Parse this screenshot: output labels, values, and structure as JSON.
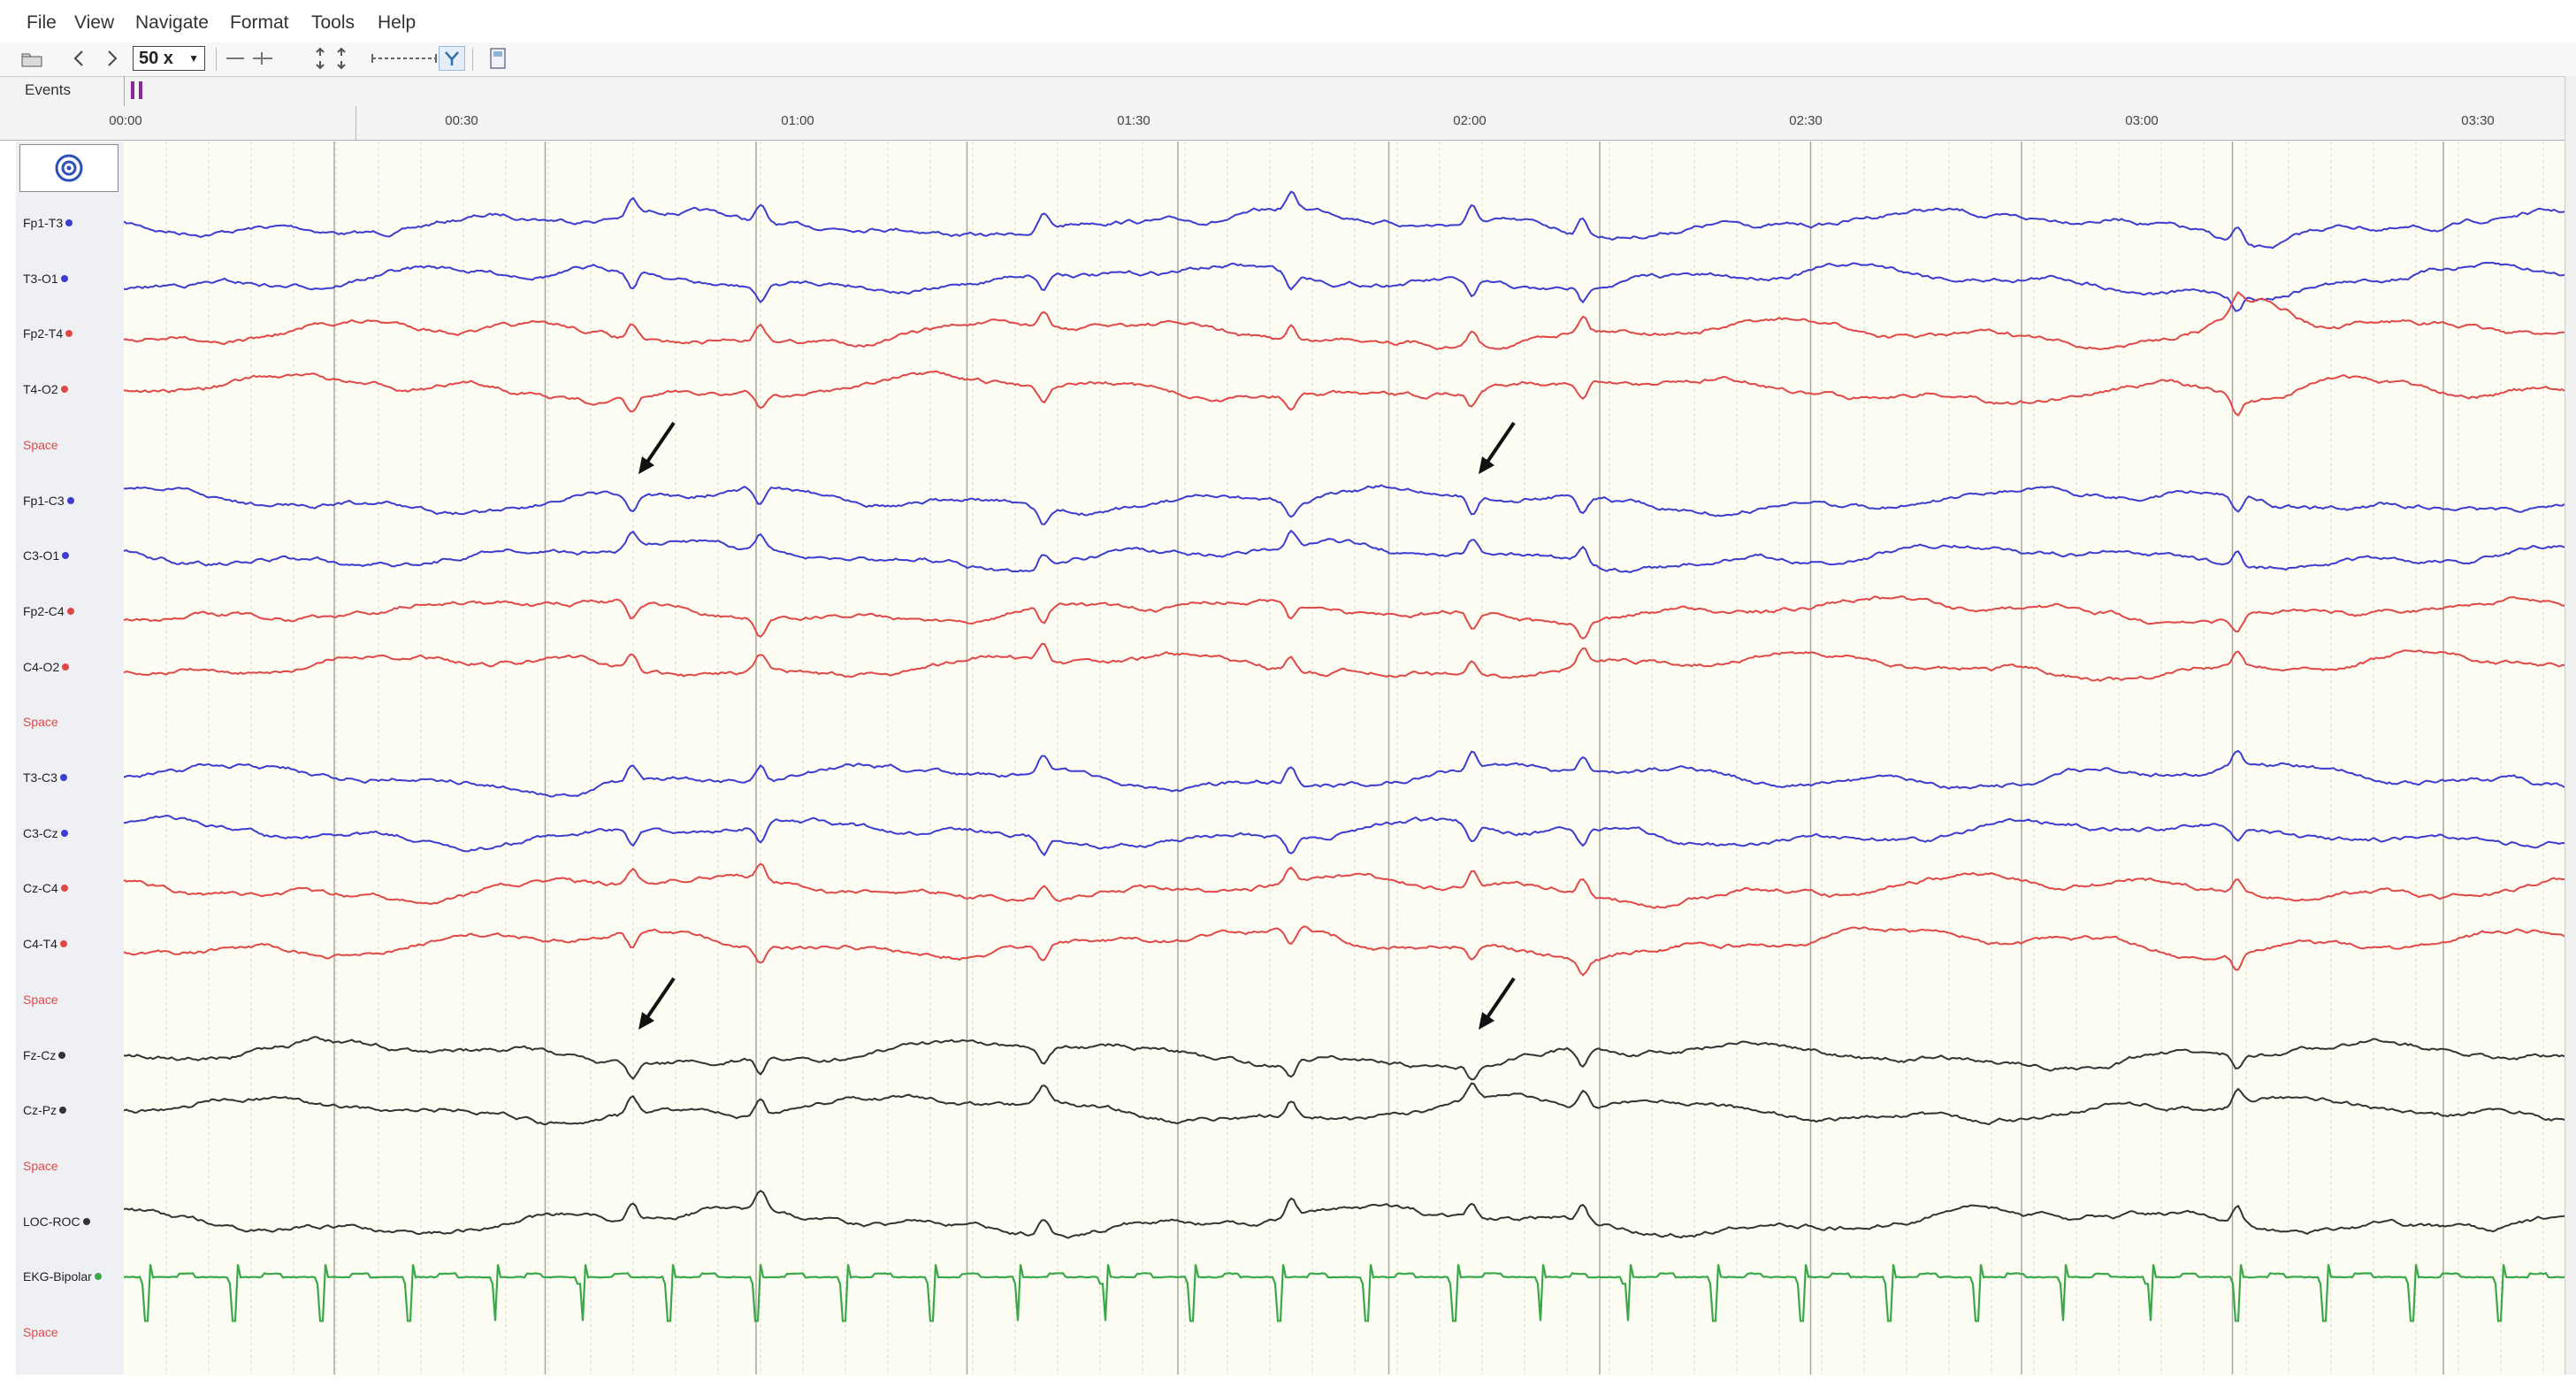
{
  "menu": [
    "File",
    "View",
    "Navigate",
    "Format",
    "Tools",
    "Help"
  ],
  "toolbar": {
    "zoom_value": "50 x"
  },
  "events": {
    "label": "Events"
  },
  "timeline": {
    "ticks": [
      "00:00",
      "00:30",
      "01:00",
      "01:30",
      "02:00",
      "02:30",
      "03:00",
      "03:30"
    ]
  },
  "channels": [
    {
      "label": "Fp1-T3",
      "color": "#3c3ccf"
    },
    {
      "label": "T3-O1",
      "color": "#3c3ccf"
    },
    {
      "label": "Fp2-T4",
      "color": "#e04848"
    },
    {
      "label": "T4-O2",
      "color": "#e04848"
    },
    {
      "label": "Space",
      "color": "#e04848",
      "space": true
    },
    {
      "label": "Fp1-C3",
      "color": "#3c3ccf"
    },
    {
      "label": "C3-O1",
      "color": "#3c3ccf"
    },
    {
      "label": "Fp2-C4",
      "color": "#e04848"
    },
    {
      "label": "C4-O2",
      "color": "#e04848"
    },
    {
      "label": "Space",
      "color": "#e04848",
      "space": true
    },
    {
      "label": "T3-C3",
      "color": "#3c3ccf"
    },
    {
      "label": "C3-Cz",
      "color": "#3c3ccf"
    },
    {
      "label": "Cz-C4",
      "color": "#e04848"
    },
    {
      "label": "C4-T4",
      "color": "#e04848"
    },
    {
      "label": "Space",
      "color": "#e04848",
      "space": true
    },
    {
      "label": "Fz-Cz",
      "color": "#333333"
    },
    {
      "label": "Cz-Pz",
      "color": "#333333"
    },
    {
      "label": "Space",
      "color": "#e04848",
      "space": true
    },
    {
      "label": "LOC-ROC",
      "color": "#333333"
    },
    {
      "label": "EKG-Bipolar",
      "color": "#3aa84a"
    },
    {
      "label": "Space",
      "color": "#e04848",
      "space": true
    }
  ]
}
